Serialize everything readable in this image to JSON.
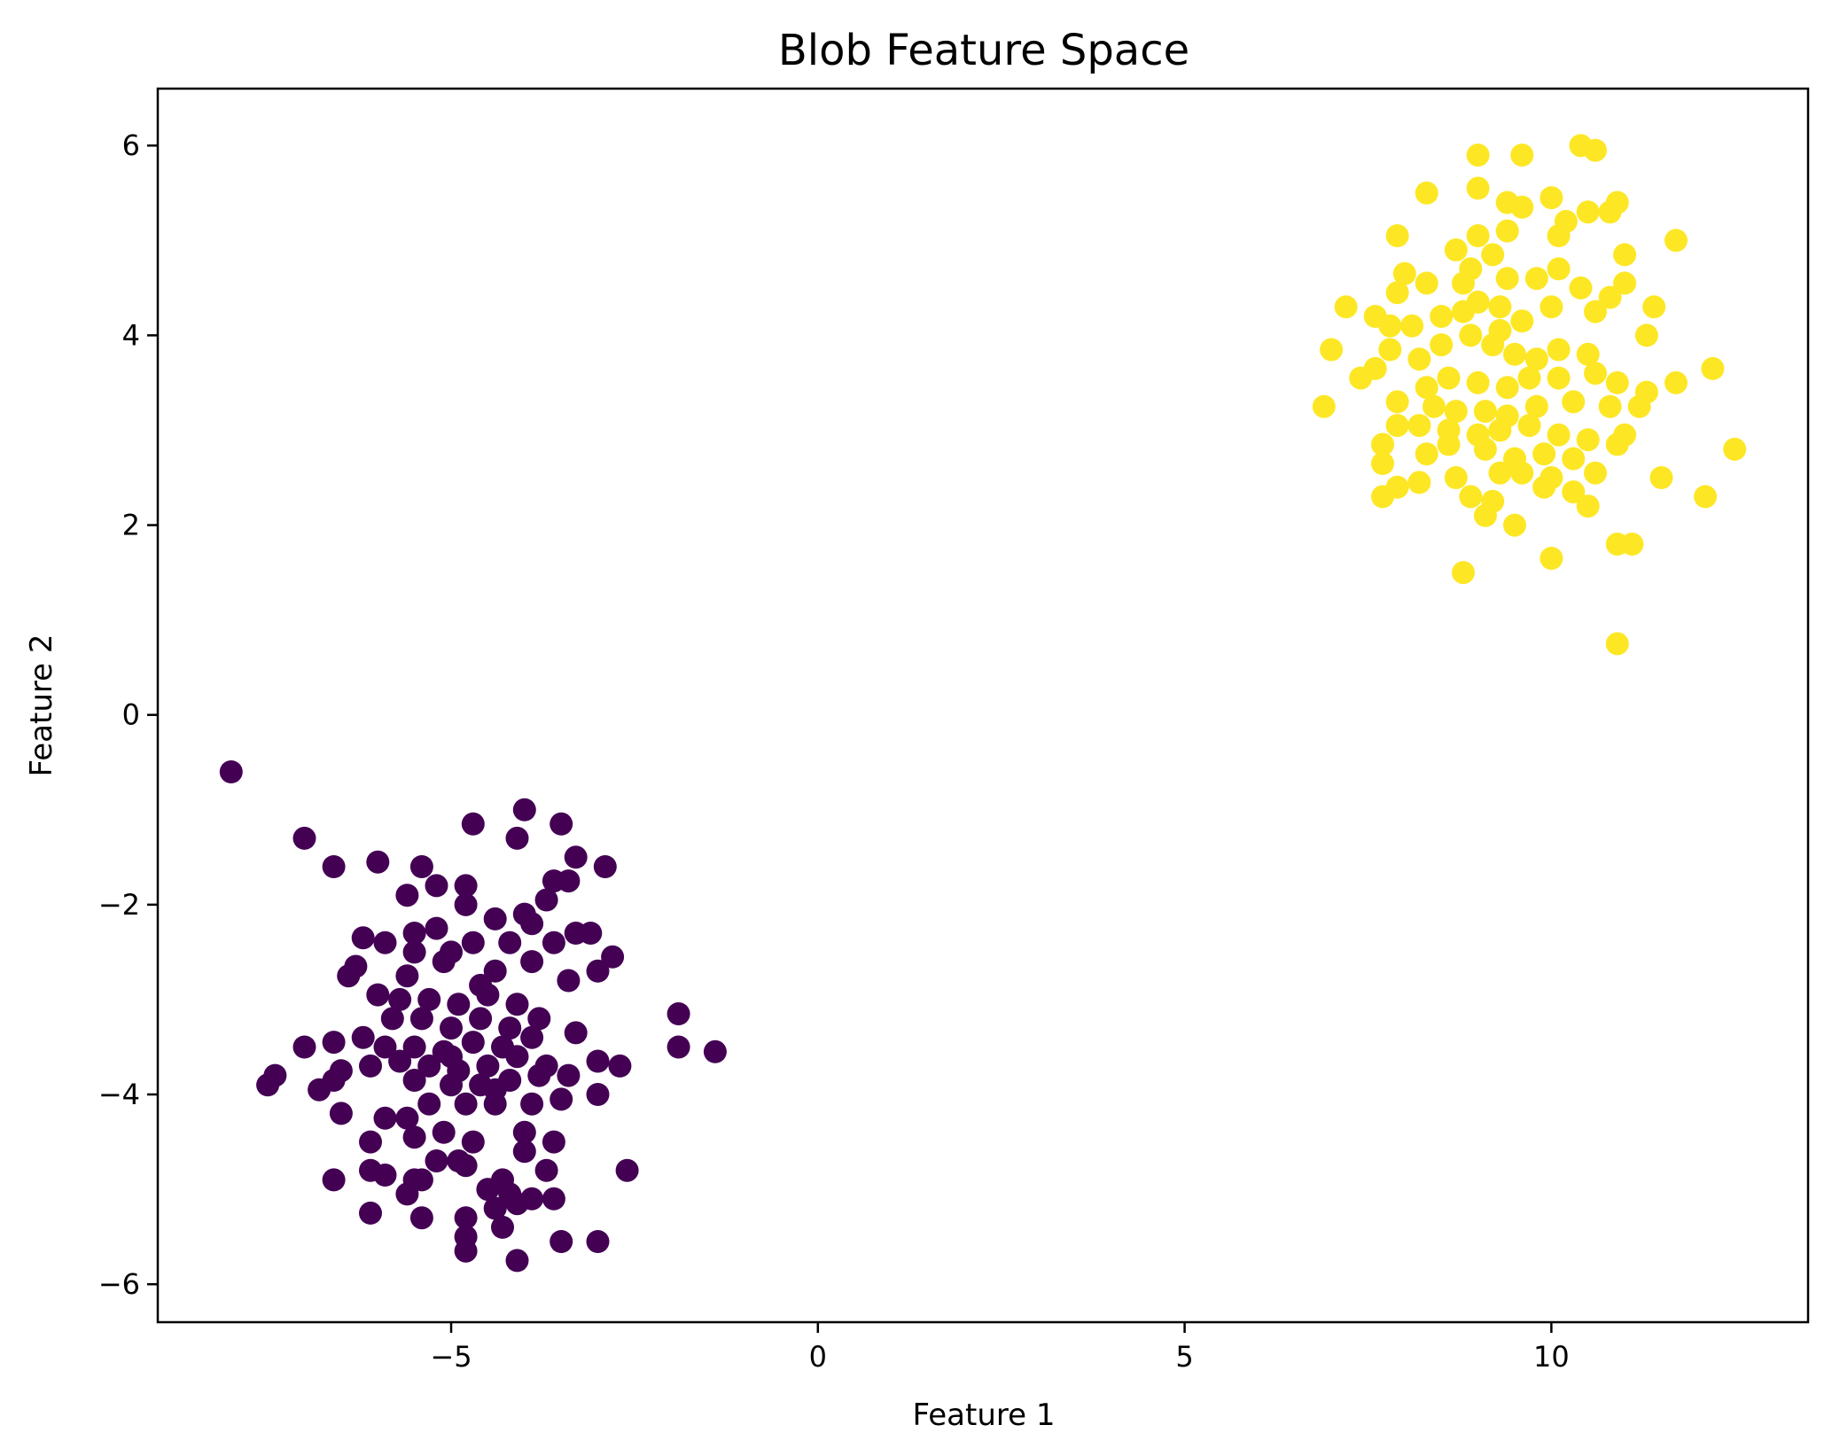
{
  "chart_data": {
    "type": "scatter",
    "title": "Blob Feature Space",
    "xlabel": "Feature 1",
    "ylabel": "Feature 2",
    "xlim": [
      -9.0,
      13.5
    ],
    "ylim": [
      -6.4,
      6.6
    ],
    "xticks": [
      -5,
      0,
      5,
      10
    ],
    "xtick_labels": [
      "−5",
      "0",
      "5",
      "10"
    ],
    "yticks": [
      -6,
      -4,
      -2,
      0,
      2,
      4,
      6
    ],
    "ytick_labels": [
      "−6",
      "−4",
      "−2",
      "0",
      "2",
      "4",
      "6"
    ],
    "grid": false,
    "series": [
      {
        "color": "#440154",
        "points": [
          [
            -8.0,
            -0.6
          ],
          [
            -7.0,
            -1.3
          ],
          [
            -6.6,
            -1.6
          ],
          [
            -6.0,
            -1.55
          ],
          [
            -5.4,
            -1.6
          ],
          [
            -5.2,
            -1.8
          ],
          [
            -5.6,
            -1.9
          ],
          [
            -4.8,
            -1.8
          ],
          [
            -4.7,
            -1.15
          ],
          [
            -4.0,
            -1.0
          ],
          [
            -4.1,
            -1.3
          ],
          [
            -3.5,
            -1.15
          ],
          [
            -3.3,
            -1.5
          ],
          [
            -2.9,
            -1.6
          ],
          [
            -3.4,
            -1.75
          ],
          [
            -3.6,
            -1.75
          ],
          [
            -3.7,
            -1.95
          ],
          [
            -4.0,
            -2.1
          ],
          [
            -3.9,
            -2.2
          ],
          [
            -4.4,
            -2.15
          ],
          [
            -4.8,
            -2.0
          ],
          [
            -5.2,
            -2.25
          ],
          [
            -6.2,
            -2.35
          ],
          [
            -5.9,
            -2.4
          ],
          [
            -5.5,
            -2.5
          ],
          [
            -5.0,
            -2.5
          ],
          [
            -4.7,
            -2.4
          ],
          [
            -4.2,
            -2.4
          ],
          [
            -3.6,
            -2.4
          ],
          [
            -3.3,
            -2.3
          ],
          [
            -3.1,
            -2.3
          ],
          [
            -2.8,
            -2.55
          ],
          [
            -3.0,
            -2.7
          ],
          [
            -3.4,
            -2.8
          ],
          [
            -3.9,
            -2.6
          ],
          [
            -4.4,
            -2.7
          ],
          [
            -5.1,
            -2.6
          ],
          [
            -5.6,
            -2.75
          ],
          [
            -6.3,
            -2.65
          ],
          [
            -6.4,
            -2.75
          ],
          [
            -6.0,
            -2.95
          ],
          [
            -5.7,
            -3.0
          ],
          [
            -5.3,
            -3.0
          ],
          [
            -4.9,
            -3.05
          ],
          [
            -4.5,
            -2.95
          ],
          [
            -4.1,
            -3.05
          ],
          [
            -3.8,
            -3.2
          ],
          [
            -4.2,
            -3.3
          ],
          [
            -4.6,
            -3.2
          ],
          [
            -5.0,
            -3.3
          ],
          [
            -5.4,
            -3.2
          ],
          [
            -5.8,
            -3.2
          ],
          [
            -6.2,
            -3.4
          ],
          [
            -6.6,
            -3.45
          ],
          [
            -7.0,
            -3.5
          ],
          [
            -5.9,
            -3.5
          ],
          [
            -5.5,
            -3.5
          ],
          [
            -5.1,
            -3.55
          ],
          [
            -4.7,
            -3.45
          ],
          [
            -4.3,
            -3.5
          ],
          [
            -3.9,
            -3.4
          ],
          [
            -3.3,
            -3.35
          ],
          [
            -3.7,
            -3.7
          ],
          [
            -4.1,
            -3.6
          ],
          [
            -4.5,
            -3.7
          ],
          [
            -4.9,
            -3.75
          ],
          [
            -5.3,
            -3.7
          ],
          [
            -5.7,
            -3.65
          ],
          [
            -6.1,
            -3.7
          ],
          [
            -6.5,
            -3.75
          ],
          [
            -6.6,
            -3.85
          ],
          [
            -7.4,
            -3.8
          ],
          [
            -7.5,
            -3.9
          ],
          [
            -6.8,
            -3.95
          ],
          [
            -5.5,
            -3.85
          ],
          [
            -5.0,
            -3.9
          ],
          [
            -4.6,
            -3.9
          ],
          [
            -4.2,
            -3.85
          ],
          [
            -3.8,
            -3.8
          ],
          [
            -3.4,
            -3.8
          ],
          [
            -3.0,
            -3.65
          ],
          [
            -2.7,
            -3.7
          ],
          [
            -3.0,
            -4.0
          ],
          [
            -3.5,
            -4.05
          ],
          [
            -3.9,
            -4.1
          ],
          [
            -4.4,
            -4.1
          ],
          [
            -4.8,
            -4.1
          ],
          [
            -5.3,
            -4.1
          ],
          [
            -5.6,
            -4.25
          ],
          [
            -5.9,
            -4.25
          ],
          [
            -6.5,
            -4.2
          ],
          [
            -6.1,
            -4.5
          ],
          [
            -5.5,
            -4.45
          ],
          [
            -5.1,
            -4.4
          ],
          [
            -4.7,
            -4.5
          ],
          [
            -4.0,
            -4.4
          ],
          [
            -3.6,
            -4.5
          ],
          [
            -4.0,
            -4.6
          ],
          [
            -4.9,
            -4.7
          ],
          [
            -5.2,
            -4.7
          ],
          [
            -6.1,
            -4.8
          ],
          [
            -5.9,
            -4.85
          ],
          [
            -5.4,
            -4.9
          ],
          [
            -5.5,
            -4.9
          ],
          [
            -4.8,
            -4.75
          ],
          [
            -4.3,
            -4.9
          ],
          [
            -3.7,
            -4.8
          ],
          [
            -2.6,
            -4.8
          ],
          [
            -6.6,
            -4.9
          ],
          [
            -5.6,
            -5.05
          ],
          [
            -4.5,
            -5.0
          ],
          [
            -4.2,
            -5.05
          ],
          [
            -3.9,
            -5.1
          ],
          [
            -3.6,
            -5.1
          ],
          [
            -4.1,
            -5.15
          ],
          [
            -4.4,
            -5.2
          ],
          [
            -6.1,
            -5.25
          ],
          [
            -5.4,
            -5.3
          ],
          [
            -4.8,
            -5.3
          ],
          [
            -4.3,
            -5.4
          ],
          [
            -4.8,
            -5.5
          ],
          [
            -3.5,
            -5.55
          ],
          [
            -3.0,
            -5.55
          ],
          [
            -4.8,
            -5.65
          ],
          [
            -4.1,
            -5.75
          ],
          [
            -1.9,
            -3.15
          ],
          [
            -1.9,
            -3.5
          ],
          [
            -1.4,
            -3.55
          ],
          [
            -5.5,
            -2.3
          ],
          [
            -4.6,
            -2.85
          ],
          [
            -5.0,
            -3.6
          ],
          [
            -4.4,
            -3.95
          ]
        ]
      },
      {
        "color": "#fde725",
        "points": [
          [
            10.4,
            6.0
          ],
          [
            10.6,
            5.95
          ],
          [
            9.0,
            5.9
          ],
          [
            9.6,
            5.9
          ],
          [
            8.3,
            5.5
          ],
          [
            9.0,
            5.55
          ],
          [
            9.4,
            5.4
          ],
          [
            9.6,
            5.35
          ],
          [
            10.0,
            5.45
          ],
          [
            10.9,
            5.4
          ],
          [
            10.8,
            5.3
          ],
          [
            10.5,
            5.3
          ],
          [
            10.2,
            5.2
          ],
          [
            10.1,
            5.05
          ],
          [
            9.4,
            5.1
          ],
          [
            9.0,
            5.05
          ],
          [
            8.7,
            4.9
          ],
          [
            7.9,
            5.05
          ],
          [
            11.7,
            5.0
          ],
          [
            11.0,
            4.85
          ],
          [
            9.2,
            4.85
          ],
          [
            8.9,
            4.7
          ],
          [
            8.8,
            4.55
          ],
          [
            8.0,
            4.65
          ],
          [
            8.3,
            4.55
          ],
          [
            7.9,
            4.45
          ],
          [
            9.4,
            4.6
          ],
          [
            9.8,
            4.6
          ],
          [
            10.1,
            4.7
          ],
          [
            10.4,
            4.5
          ],
          [
            10.8,
            4.4
          ],
          [
            11.0,
            4.55
          ],
          [
            7.2,
            4.3
          ],
          [
            7.6,
            4.2
          ],
          [
            7.8,
            4.1
          ],
          [
            8.1,
            4.1
          ],
          [
            8.5,
            4.2
          ],
          [
            8.8,
            4.25
          ],
          [
            9.0,
            4.35
          ],
          [
            9.3,
            4.3
          ],
          [
            9.6,
            4.15
          ],
          [
            10.0,
            4.3
          ],
          [
            10.6,
            4.25
          ],
          [
            11.4,
            4.3
          ],
          [
            7.0,
            3.85
          ],
          [
            7.8,
            3.85
          ],
          [
            8.2,
            3.75
          ],
          [
            8.5,
            3.9
          ],
          [
            8.9,
            4.0
          ],
          [
            9.2,
            3.9
          ],
          [
            9.5,
            3.8
          ],
          [
            9.8,
            3.75
          ],
          [
            10.1,
            3.85
          ],
          [
            10.5,
            3.8
          ],
          [
            11.3,
            4.0
          ],
          [
            12.2,
            3.65
          ],
          [
            7.4,
            3.55
          ],
          [
            7.6,
            3.65
          ],
          [
            8.3,
            3.45
          ],
          [
            8.6,
            3.55
          ],
          [
            9.0,
            3.5
          ],
          [
            9.4,
            3.45
          ],
          [
            9.7,
            3.55
          ],
          [
            10.1,
            3.55
          ],
          [
            10.6,
            3.6
          ],
          [
            10.9,
            3.5
          ],
          [
            11.7,
            3.5
          ],
          [
            11.3,
            3.4
          ],
          [
            7.9,
            3.3
          ],
          [
            8.4,
            3.25
          ],
          [
            8.7,
            3.2
          ],
          [
            9.1,
            3.2
          ],
          [
            9.4,
            3.15
          ],
          [
            9.8,
            3.25
          ],
          [
            10.3,
            3.3
          ],
          [
            10.8,
            3.25
          ],
          [
            11.2,
            3.25
          ],
          [
            6.9,
            3.25
          ],
          [
            7.9,
            3.05
          ],
          [
            8.2,
            3.05
          ],
          [
            8.6,
            3.0
          ],
          [
            9.0,
            2.95
          ],
          [
            9.3,
            3.0
          ],
          [
            9.7,
            3.05
          ],
          [
            10.1,
            2.95
          ],
          [
            10.5,
            2.9
          ],
          [
            11.0,
            2.95
          ],
          [
            7.7,
            2.85
          ],
          [
            8.3,
            2.75
          ],
          [
            8.6,
            2.85
          ],
          [
            9.1,
            2.8
          ],
          [
            9.5,
            2.7
          ],
          [
            9.9,
            2.75
          ],
          [
            10.3,
            2.7
          ],
          [
            10.9,
            2.85
          ],
          [
            12.5,
            2.8
          ],
          [
            7.7,
            2.65
          ],
          [
            8.7,
            2.5
          ],
          [
            9.3,
            2.55
          ],
          [
            9.6,
            2.55
          ],
          [
            10.0,
            2.5
          ],
          [
            10.6,
            2.55
          ],
          [
            11.5,
            2.5
          ],
          [
            7.9,
            2.4
          ],
          [
            8.2,
            2.45
          ],
          [
            8.9,
            2.3
          ],
          [
            9.9,
            2.4
          ],
          [
            10.3,
            2.35
          ],
          [
            7.7,
            2.3
          ],
          [
            9.2,
            2.25
          ],
          [
            10.5,
            2.2
          ],
          [
            12.1,
            2.3
          ],
          [
            9.1,
            2.1
          ],
          [
            9.5,
            2.0
          ],
          [
            10.9,
            1.8
          ],
          [
            11.1,
            1.8
          ],
          [
            10.0,
            1.65
          ],
          [
            8.8,
            1.5
          ],
          [
            10.9,
            0.75
          ],
          [
            9.3,
            4.05
          ]
        ]
      }
    ]
  }
}
